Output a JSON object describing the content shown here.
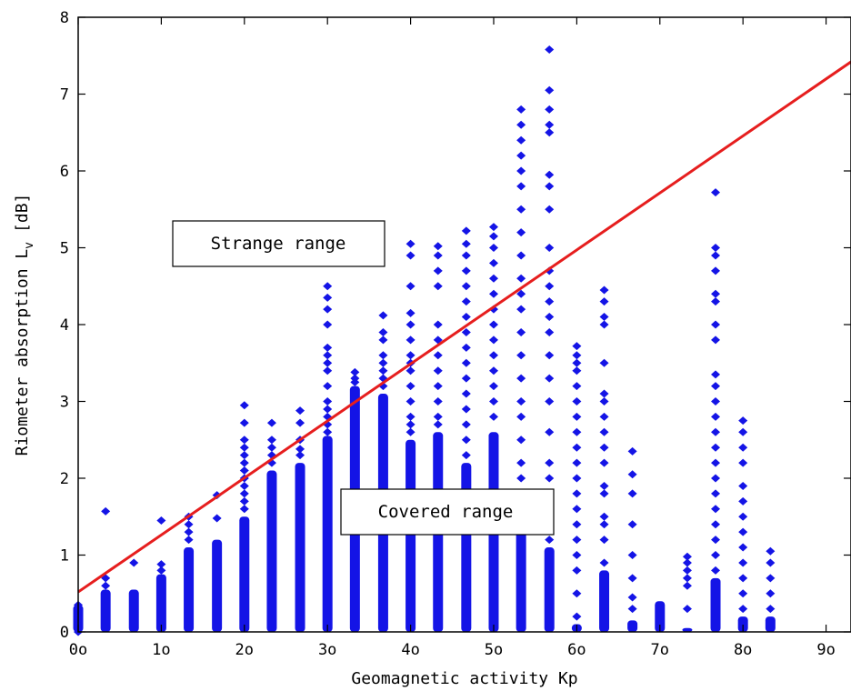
{
  "chart_data": {
    "type": "scatter",
    "title": "",
    "xlabel": "Geomagnetic activity Kp",
    "ylabel": "Riometer absorption L",
    "ylabel_subscript": "v",
    "ylabel_unit": "[dB]",
    "xlim": [
      0,
      9.3
    ],
    "ylim": [
      0,
      8
    ],
    "x_tick_labels": [
      "0o",
      "1o",
      "2o",
      "3o",
      "4o",
      "5o",
      "6o",
      "7o",
      "8o",
      "9o"
    ],
    "y_tick_labels": [
      "0",
      "1",
      "2",
      "3",
      "4",
      "5",
      "6",
      "7",
      "8"
    ],
    "grid": false,
    "marker_color": "#1414e6",
    "line_color": "#e61e1e",
    "fit_line": {
      "x": [
        0,
        9.3
      ],
      "y": [
        0.52,
        7.42
      ]
    },
    "annotations": [
      {
        "text": "Strange range",
        "x": 1.2,
        "y": 5.0
      },
      {
        "text": "Covered range",
        "x": 3.2,
        "y": 1.55
      }
    ],
    "columns": [
      {
        "x": 0.0,
        "dense_max": 0.35,
        "points": [
          0.0,
          0.1,
          0.2,
          0.3,
          0.35
        ]
      },
      {
        "x": 0.33,
        "dense_max": 0.55,
        "points": [
          0.6,
          0.7,
          1.57
        ]
      },
      {
        "x": 0.67,
        "dense_max": 0.55,
        "points": [
          0.9
        ]
      },
      {
        "x": 1.0,
        "dense_max": 0.75,
        "points": [
          0.8,
          0.88,
          1.45
        ]
      },
      {
        "x": 1.33,
        "dense_max": 1.1,
        "points": [
          1.2,
          1.3,
          1.4,
          1.5
        ]
      },
      {
        "x": 1.67,
        "dense_max": 1.2,
        "points": [
          1.48,
          1.78
        ]
      },
      {
        "x": 2.0,
        "dense_max": 1.5,
        "points": [
          1.6,
          1.7,
          1.8,
          1.9,
          2.0,
          2.1,
          2.2,
          2.3,
          2.4,
          2.5,
          2.72,
          2.95
        ]
      },
      {
        "x": 2.33,
        "dense_max": 2.1,
        "points": [
          2.2,
          2.3,
          2.4,
          2.5,
          2.72
        ]
      },
      {
        "x": 2.67,
        "dense_max": 2.2,
        "points": [
          2.3,
          2.38,
          2.5,
          2.72,
          2.88
        ]
      },
      {
        "x": 3.0,
        "dense_max": 2.55,
        "points": [
          2.6,
          2.7,
          2.8,
          2.9,
          3.0,
          3.2,
          3.4,
          3.5,
          3.6,
          3.7,
          4.0,
          4.2,
          4.35,
          4.5
        ]
      },
      {
        "x": 3.33,
        "dense_max": 3.2,
        "points": [
          3.25,
          3.3,
          3.38
        ]
      },
      {
        "x": 3.67,
        "dense_max": 3.1,
        "points": [
          3.2,
          3.3,
          3.4,
          3.5,
          3.6,
          3.8,
          3.9,
          4.12
        ]
      },
      {
        "x": 4.0,
        "dense_max": 2.5,
        "points": [
          2.6,
          2.7,
          2.8,
          3.0,
          3.2,
          3.4,
          3.5,
          3.6,
          3.8,
          4.0,
          4.15,
          4.5,
          4.9,
          5.05
        ]
      },
      {
        "x": 4.33,
        "dense_max": 2.6,
        "points": [
          2.7,
          2.8,
          3.0,
          3.2,
          3.4,
          3.6,
          3.8,
          4.0,
          4.5,
          4.7,
          4.9,
          5.02
        ]
      },
      {
        "x": 4.67,
        "dense_max": 2.2,
        "points": [
          2.3,
          2.5,
          2.7,
          2.9,
          3.1,
          3.3,
          3.5,
          3.7,
          3.9,
          4.1,
          4.3,
          4.5,
          4.7,
          4.9,
          5.05,
          5.22
        ]
      },
      {
        "x": 5.0,
        "dense_max": 2.6,
        "points": [
          2.8,
          3.0,
          3.2,
          3.4,
          3.6,
          3.8,
          4.0,
          4.2,
          4.4,
          4.6,
          4.8,
          5.0,
          5.15,
          5.27
        ]
      },
      {
        "x": 5.33,
        "dense_max": 1.5,
        "points": [
          1.6,
          1.8,
          2.0,
          2.2,
          2.5,
          2.8,
          3.0,
          3.3,
          3.6,
          3.9,
          4.2,
          4.4,
          4.6,
          4.9,
          5.2,
          5.5,
          5.8,
          6.0,
          6.2,
          6.4,
          6.6,
          6.8
        ]
      },
      {
        "x": 5.67,
        "dense_max": 1.1,
        "points": [
          1.2,
          1.5,
          1.8,
          2.0,
          2.2,
          2.6,
          3.0,
          3.3,
          3.6,
          3.9,
          4.1,
          4.3,
          4.5,
          4.7,
          5.0,
          5.5,
          5.8,
          5.95,
          6.5,
          6.6,
          6.8,
          7.05,
          7.58
        ]
      },
      {
        "x": 6.0,
        "dense_max": 0.1,
        "points": [
          0.2,
          0.5,
          0.8,
          1.0,
          1.2,
          1.4,
          1.6,
          1.8,
          2.0,
          2.2,
          2.4,
          2.6,
          2.8,
          3.0,
          3.2,
          3.4,
          3.5,
          3.6,
          3.72
        ]
      },
      {
        "x": 6.33,
        "dense_max": 0.8,
        "points": [
          0.9,
          1.2,
          1.4,
          1.5,
          1.8,
          1.9,
          2.2,
          2.4,
          2.6,
          2.8,
          3.0,
          3.1,
          3.5,
          4.0,
          4.1,
          4.3,
          4.45
        ]
      },
      {
        "x": 6.67,
        "dense_max": 0.15,
        "points": [
          0.3,
          0.45,
          0.7,
          1.0,
          1.4,
          1.8,
          2.05,
          2.35
        ]
      },
      {
        "x": 7.0,
        "dense_max": 0.4,
        "points": []
      },
      {
        "x": 7.33,
        "dense_max": 0.05,
        "points": [
          0.3,
          0.6,
          0.7,
          0.8,
          0.9,
          0.98
        ]
      },
      {
        "x": 7.67,
        "dense_max": 0.7,
        "points": [
          0.8,
          1.0,
          1.2,
          1.4,
          1.6,
          1.8,
          2.0,
          2.2,
          2.4,
          2.6,
          2.8,
          3.0,
          3.2,
          3.35,
          3.8,
          4.0,
          4.3,
          4.4,
          4.7,
          4.9,
          5.0,
          5.72
        ]
      },
      {
        "x": 8.0,
        "dense_max": 0.2,
        "points": [
          0.3,
          0.5,
          0.7,
          0.9,
          1.1,
          1.3,
          1.5,
          1.7,
          1.9,
          2.2,
          2.4,
          2.6,
          2.75
        ]
      },
      {
        "x": 8.33,
        "dense_max": 0.2,
        "points": [
          0.3,
          0.5,
          0.7,
          0.9,
          1.05
        ]
      }
    ]
  }
}
